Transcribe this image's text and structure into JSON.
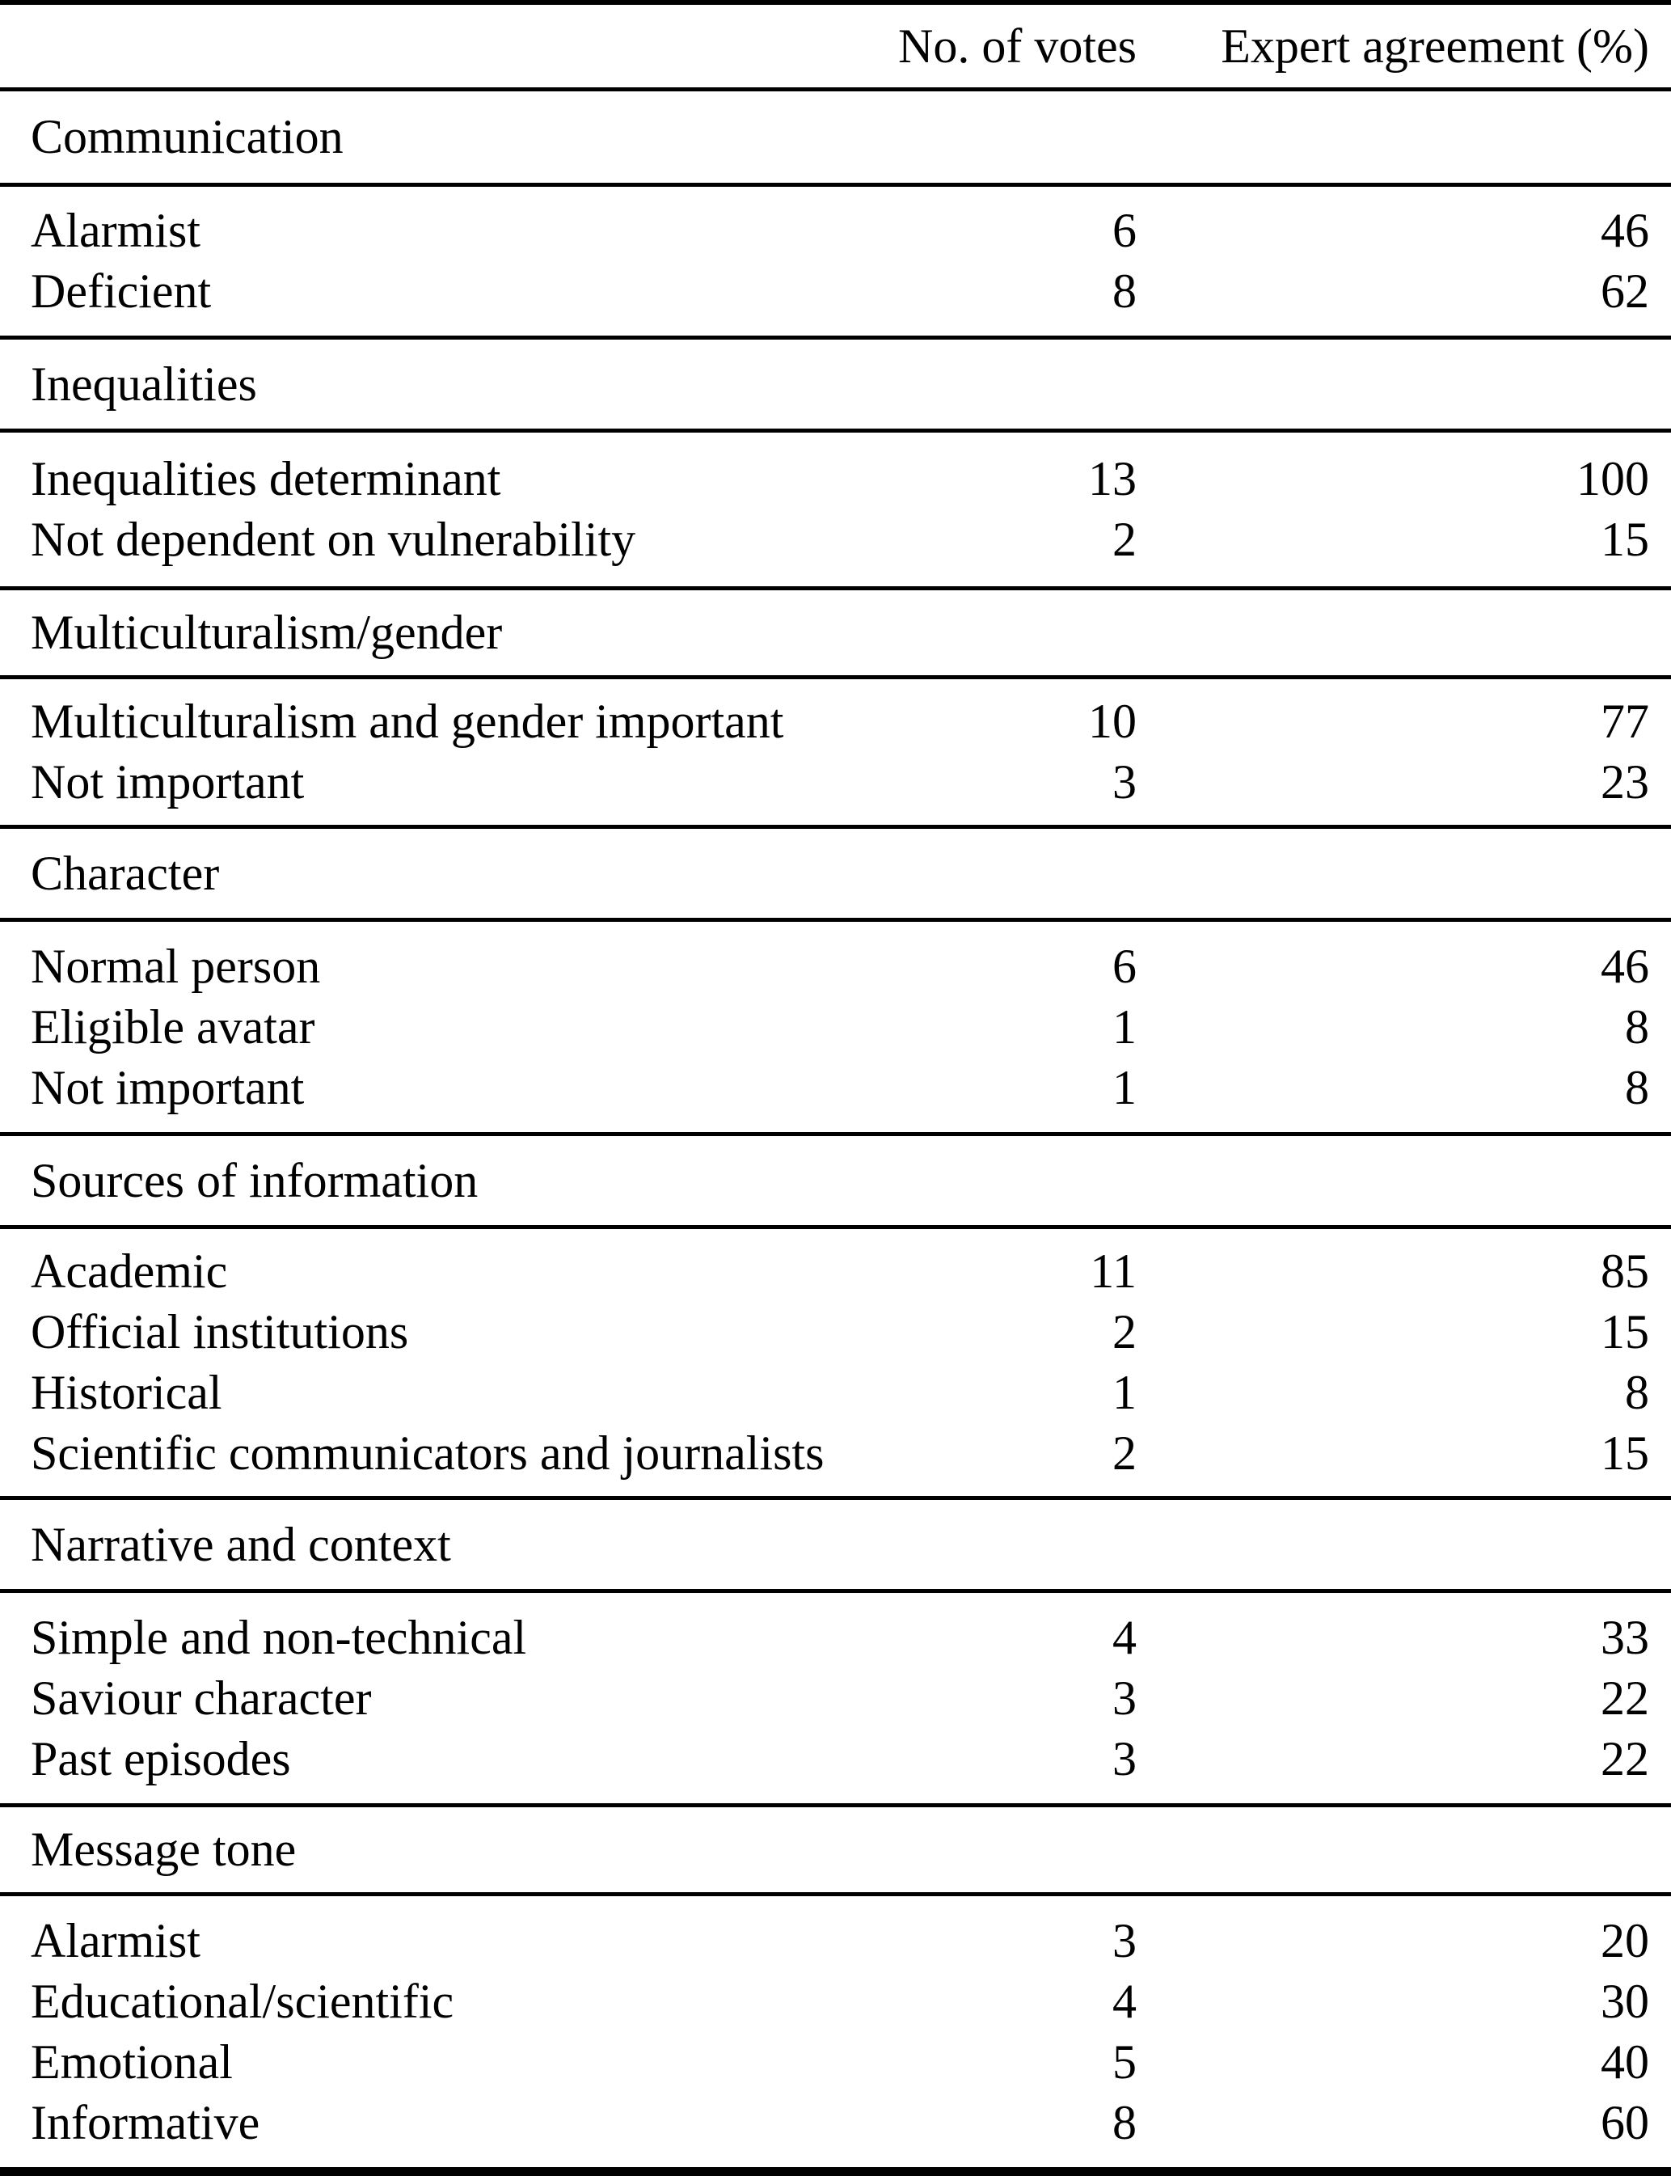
{
  "table": {
    "columns": {
      "label": "",
      "votes": "No. of votes",
      "agreement": "Expert agreement (%)"
    },
    "sections": [
      {
        "title": "Communication",
        "rows": [
          {
            "label": "Alarmist",
            "votes": "6",
            "agreement": "46"
          },
          {
            "label": "Deficient",
            "votes": "8",
            "agreement": "62"
          }
        ]
      },
      {
        "title": "Inequalities",
        "rows": [
          {
            "label": "Inequalities determinant",
            "votes": "13",
            "agreement": "100"
          },
          {
            "label": "Not dependent on vulnerability",
            "votes": "2",
            "agreement": "15"
          }
        ]
      },
      {
        "title": "Multiculturalism/gender",
        "rows": [
          {
            "label": "Multiculturalism and gender important",
            "votes": "10",
            "agreement": "77"
          },
          {
            "label": "Not important",
            "votes": "3",
            "agreement": "23"
          }
        ]
      },
      {
        "title": "Character",
        "rows": [
          {
            "label": "Normal person",
            "votes": "6",
            "agreement": "46"
          },
          {
            "label": "Eligible avatar",
            "votes": "1",
            "agreement": "8"
          },
          {
            "label": "Not important",
            "votes": "1",
            "agreement": "8"
          }
        ]
      },
      {
        "title": "Sources of information",
        "rows": [
          {
            "label": "Academic",
            "votes": "11",
            "agreement": "85"
          },
          {
            "label": "Official institutions",
            "votes": "2",
            "agreement": "15"
          },
          {
            "label": "Historical",
            "votes": "1",
            "agreement": "8"
          },
          {
            "label": "Scientific communicators and journalists",
            "votes": "2",
            "agreement": "15"
          }
        ]
      },
      {
        "title": "Narrative and context",
        "rows": [
          {
            "label": "Simple and non-technical",
            "votes": "4",
            "agreement": "33"
          },
          {
            "label": "Saviour character",
            "votes": "3",
            "agreement": "22"
          },
          {
            "label": "Past episodes",
            "votes": "3",
            "agreement": "22"
          }
        ]
      },
      {
        "title": "Message tone",
        "rows": [
          {
            "label": "Alarmist",
            "votes": "3",
            "agreement": "20"
          },
          {
            "label": "Educational/scientific",
            "votes": "4",
            "agreement": "30"
          },
          {
            "label": "Emotional",
            "votes": "5",
            "agreement": "40"
          },
          {
            "label": "Informative",
            "votes": "8",
            "agreement": "60"
          }
        ]
      }
    ]
  },
  "chart_data": {
    "type": "table",
    "title": "",
    "columns": [
      "",
      "No. of votes",
      "Expert agreement (%)"
    ],
    "groups": [
      {
        "group": "Communication",
        "rows": [
          [
            "Alarmist",
            6,
            46
          ],
          [
            "Deficient",
            8,
            62
          ]
        ]
      },
      {
        "group": "Inequalities",
        "rows": [
          [
            "Inequalities determinant",
            13,
            100
          ],
          [
            "Not dependent on vulnerability",
            2,
            15
          ]
        ]
      },
      {
        "group": "Multiculturalism/gender",
        "rows": [
          [
            "Multiculturalism and gender important",
            10,
            77
          ],
          [
            "Not important",
            3,
            23
          ]
        ]
      },
      {
        "group": "Character",
        "rows": [
          [
            "Normal person",
            6,
            46
          ],
          [
            "Eligible avatar",
            1,
            8
          ],
          [
            "Not important",
            1,
            8
          ]
        ]
      },
      {
        "group": "Sources of information",
        "rows": [
          [
            "Academic",
            11,
            85
          ],
          [
            "Official institutions",
            2,
            15
          ],
          [
            "Historical",
            1,
            8
          ],
          [
            "Scientific communicators and journalists",
            2,
            15
          ]
        ]
      },
      {
        "group": "Narrative and context",
        "rows": [
          [
            "Simple and non-technical",
            4,
            33
          ],
          [
            "Saviour character",
            3,
            22
          ],
          [
            "Past episodes",
            3,
            22
          ]
        ]
      },
      {
        "group": "Message tone",
        "rows": [
          [
            "Alarmist",
            3,
            20
          ],
          [
            "Educational/scientific",
            4,
            30
          ],
          [
            "Emotional",
            5,
            40
          ],
          [
            "Informative",
            8,
            60
          ]
        ]
      }
    ]
  },
  "colors": {
    "text": "#000000",
    "rule": "#000000",
    "background": "#ffffff"
  }
}
